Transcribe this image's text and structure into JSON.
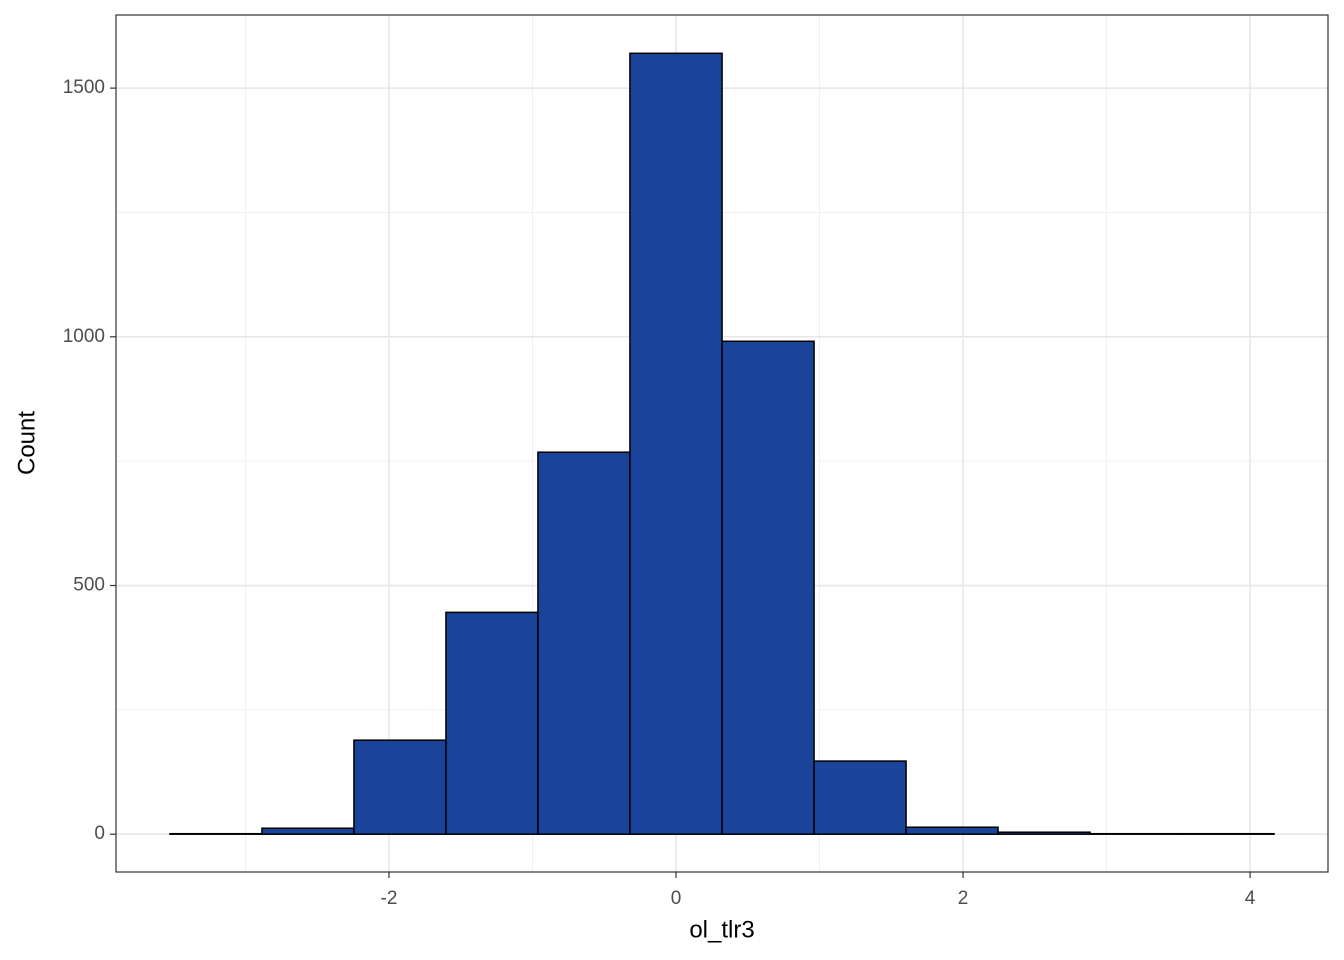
{
  "chart_data": {
    "type": "histogram",
    "x_label": "ol_tlr3",
    "y_label": "Count",
    "bins": [
      -3.526,
      -2.885,
      -2.244,
      -1.603,
      -0.962,
      -0.321,
      0.321,
      0.962,
      1.603,
      2.244,
      2.885,
      3.526,
      4.167
    ],
    "values": [
      1,
      12,
      189,
      446,
      768,
      1570,
      991,
      147,
      14,
      4,
      1,
      1
    ],
    "color": "#1a4499",
    "edge_color": "#000000",
    "xlim": [
      -3.902,
      4.543
    ],
    "ylim": [
      -76,
      1647
    ],
    "xticks": [
      -2,
      0,
      2,
      4
    ],
    "yticks": [
      0,
      500,
      1000,
      1500
    ],
    "xminor": [
      -3,
      -1,
      1,
      3
    ],
    "yminor": [
      250,
      750,
      1250
    ],
    "grid": true
  }
}
